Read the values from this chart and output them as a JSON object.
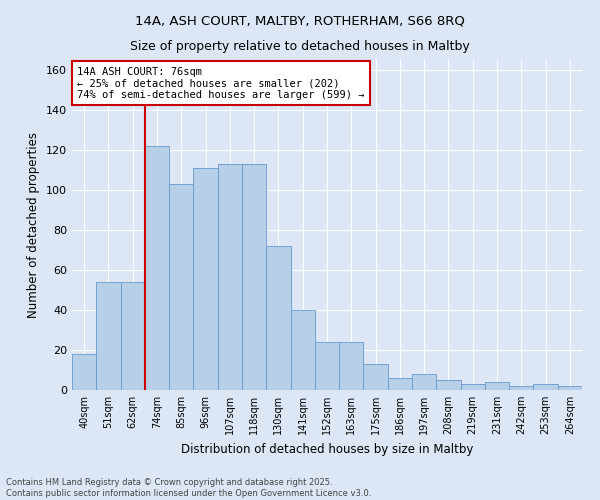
{
  "title1": "14A, ASH COURT, MALTBY, ROTHERHAM, S66 8RQ",
  "title2": "Size of property relative to detached houses in Maltby",
  "xlabel": "Distribution of detached houses by size in Maltby",
  "ylabel": "Number of detached properties",
  "categories": [
    "40sqm",
    "51sqm",
    "62sqm",
    "74sqm",
    "85sqm",
    "96sqm",
    "107sqm",
    "118sqm",
    "130sqm",
    "141sqm",
    "152sqm",
    "163sqm",
    "175sqm",
    "186sqm",
    "197sqm",
    "208sqm",
    "219sqm",
    "231sqm",
    "242sqm",
    "253sqm",
    "264sqm"
  ],
  "values": [
    18,
    54,
    54,
    122,
    103,
    111,
    113,
    113,
    72,
    40,
    24,
    24,
    13,
    6,
    8,
    5,
    3,
    4,
    2,
    3,
    2
  ],
  "bar_color": "#b8cfe8",
  "bar_edge_color": "#6699cc",
  "background_color": "#dce6f5",
  "grid_color": "#ffffff",
  "annotation_text": "14A ASH COURT: 76sqm\n← 25% of detached houses are smaller (202)\n74% of semi-detached houses are larger (599) →",
  "annotation_box_color": "#ffffff",
  "annotation_box_edge": "#cc0000",
  "vline_color": "#cc0000",
  "ylim": [
    0,
    165
  ],
  "yticks": [
    0,
    20,
    40,
    60,
    80,
    100,
    120,
    140,
    160
  ],
  "footer1": "Contains HM Land Registry data © Crown copyright and database right 2025.",
  "footer2": "Contains public sector information licensed under the Open Government Licence v3.0."
}
